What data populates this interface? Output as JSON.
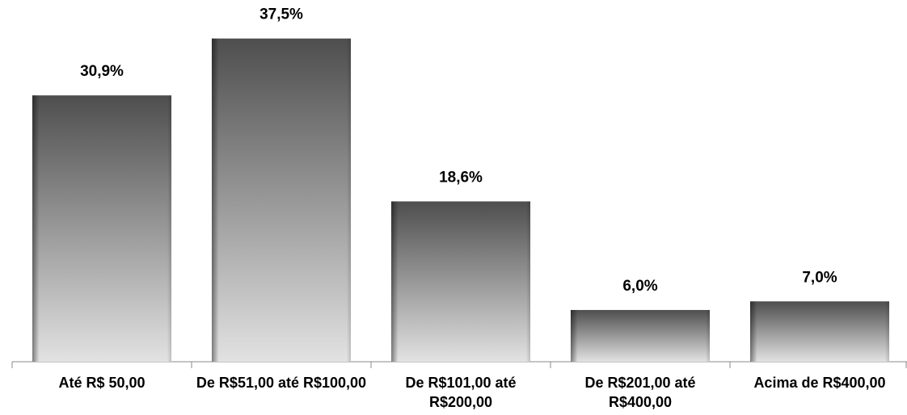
{
  "chart_data": {
    "type": "bar",
    "categories": [
      "Até R$ 50,00",
      "De R$51,00 até R$100,00",
      "De R$101,00 até R$200,00",
      "De R$201,00 até R$400,00",
      "Acima de R$400,00"
    ],
    "values": [
      30.9,
      37.5,
      18.6,
      6.0,
      7.0
    ],
    "value_labels": [
      "30,9%",
      "37,5%",
      "18,6%",
      "6,0%",
      "7,0%"
    ],
    "ylim": [
      0,
      40
    ]
  }
}
